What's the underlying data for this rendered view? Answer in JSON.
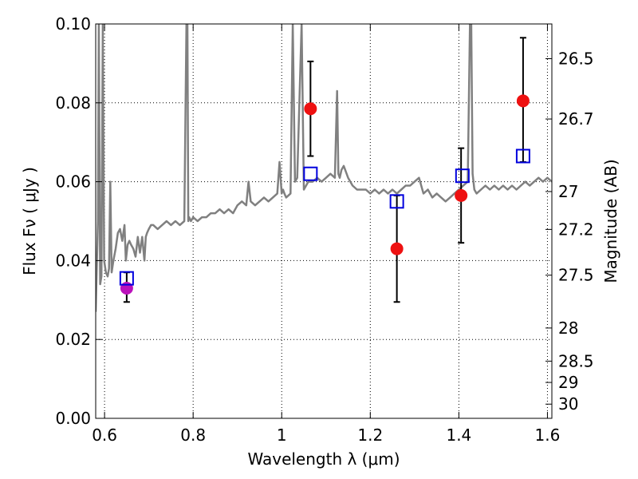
{
  "chart_data": {
    "type": "scatter",
    "xlabel": "Wavelength  λ (μm)",
    "ylabel": "Flux  Fν  ( μJy )",
    "ylabel_right": "Magnitude (AB)",
    "xlim": [
      0.58,
      1.61
    ],
    "ylim": [
      0.0,
      0.1
    ],
    "grid": true,
    "x_ticks": [
      0.6,
      0.8,
      1.0,
      1.2,
      1.4,
      1.6
    ],
    "x_tick_labels": [
      "0.6",
      "0.8",
      "1",
      "1.2",
      "1.4",
      "1.6"
    ],
    "y_ticks": [
      0.0,
      0.02,
      0.04,
      0.06,
      0.08,
      0.1
    ],
    "y_tick_labels": [
      "0.00",
      "0.02",
      "0.04",
      "0.06",
      "0.08",
      "0.10"
    ],
    "right_ticks": [
      {
        "label": "26.5",
        "flux": 0.0912
      },
      {
        "label": "26.7",
        "flux": 0.0759
      },
      {
        "label": "27",
        "flux": 0.0575
      },
      {
        "label": "27.2",
        "flux": 0.0479
      },
      {
        "label": "27.5",
        "flux": 0.0363
      },
      {
        "label": "28",
        "flux": 0.0229
      },
      {
        "label": "28.5",
        "flux": 0.0145
      },
      {
        "label": "29",
        "flux": 0.0091
      },
      {
        "label": "30",
        "flux": 0.0036
      }
    ],
    "series": [
      {
        "kind": "line",
        "color": "#808080",
        "x": [
          0.58,
          0.585,
          0.587,
          0.59,
          0.593,
          0.596,
          0.599,
          0.603,
          0.607,
          0.61,
          0.613,
          0.616,
          0.62,
          0.625,
          0.63,
          0.635,
          0.64,
          0.645,
          0.648,
          0.652,
          0.656,
          0.66,
          0.665,
          0.67,
          0.675,
          0.68,
          0.685,
          0.69,
          0.693,
          0.696,
          0.7,
          0.705,
          0.71,
          0.72,
          0.73,
          0.74,
          0.75,
          0.76,
          0.77,
          0.78,
          0.785,
          0.787,
          0.789,
          0.791,
          0.795,
          0.8,
          0.81,
          0.82,
          0.83,
          0.84,
          0.85,
          0.86,
          0.87,
          0.88,
          0.89,
          0.9,
          0.91,
          0.92,
          0.925,
          0.93,
          0.94,
          0.95,
          0.96,
          0.97,
          0.98,
          0.99,
          0.995,
          1.0,
          1.003,
          1.006,
          1.01,
          1.02,
          1.025,
          1.03,
          1.035,
          1.045,
          1.05,
          1.055,
          1.06,
          1.07,
          1.08,
          1.09,
          1.1,
          1.11,
          1.12,
          1.125,
          1.128,
          1.131,
          1.135,
          1.14,
          1.15,
          1.16,
          1.17,
          1.18,
          1.19,
          1.2,
          1.21,
          1.22,
          1.23,
          1.24,
          1.25,
          1.26,
          1.27,
          1.28,
          1.29,
          1.3,
          1.31,
          1.32,
          1.33,
          1.34,
          1.35,
          1.36,
          1.37,
          1.38,
          1.39,
          1.4,
          1.41,
          1.42,
          1.425,
          1.428,
          1.431,
          1.435,
          1.44,
          1.45,
          1.46,
          1.47,
          1.48,
          1.49,
          1.5,
          1.51,
          1.52,
          1.53,
          1.54,
          1.55,
          1.56,
          1.57,
          1.58,
          1.59,
          1.6,
          1.61
        ],
        "y": [
          0.027,
          0.05,
          0.1,
          0.034,
          0.036,
          0.1,
          0.04,
          0.037,
          0.036,
          0.038,
          0.06,
          0.037,
          0.04,
          0.043,
          0.047,
          0.048,
          0.045,
          0.049,
          0.04,
          0.044,
          0.045,
          0.044,
          0.043,
          0.041,
          0.046,
          0.042,
          0.046,
          0.04,
          0.046,
          0.047,
          0.048,
          0.049,
          0.049,
          0.048,
          0.049,
          0.05,
          0.049,
          0.05,
          0.049,
          0.05,
          0.1,
          0.1,
          0.05,
          0.051,
          0.05,
          0.051,
          0.05,
          0.051,
          0.051,
          0.052,
          0.052,
          0.053,
          0.052,
          0.053,
          0.052,
          0.054,
          0.055,
          0.054,
          0.06,
          0.055,
          0.054,
          0.055,
          0.056,
          0.055,
          0.056,
          0.057,
          0.065,
          0.057,
          0.058,
          0.057,
          0.056,
          0.057,
          0.1,
          0.06,
          0.061,
          0.1,
          0.058,
          0.059,
          0.06,
          0.06,
          0.061,
          0.06,
          0.061,
          0.062,
          0.061,
          0.083,
          0.062,
          0.061,
          0.063,
          0.064,
          0.061,
          0.059,
          0.058,
          0.058,
          0.058,
          0.057,
          0.058,
          0.057,
          0.058,
          0.057,
          0.058,
          0.057,
          0.058,
          0.059,
          0.059,
          0.06,
          0.061,
          0.057,
          0.058,
          0.056,
          0.057,
          0.056,
          0.055,
          0.056,
          0.057,
          0.058,
          0.059,
          0.06,
          0.1,
          0.1,
          0.062,
          0.058,
          0.057,
          0.058,
          0.059,
          0.058,
          0.059,
          0.058,
          0.059,
          0.058,
          0.059,
          0.058,
          0.059,
          0.06,
          0.059,
          0.06,
          0.061,
          0.06,
          0.061,
          0.06
        ]
      },
      {
        "kind": "points",
        "marker": "circle",
        "color": "#ee1111",
        "x": [
          1.065,
          1.26,
          1.405,
          1.545
        ],
        "y": [
          0.0785,
          0.043,
          0.0565,
          0.0805
        ],
        "y_err_low": [
          0.012,
          0.0135,
          0.012,
          0.0155
        ],
        "y_err_high": [
          0.012,
          0.0135,
          0.012,
          0.016
        ]
      },
      {
        "kind": "points",
        "marker": "circle",
        "color": "#bb11bb",
        "x": [
          0.65
        ],
        "y": [
          0.033
        ],
        "y_err_low": [
          0.0035
        ],
        "y_err_high": [
          0.004
        ]
      },
      {
        "kind": "points",
        "marker": "open-square",
        "color": "#0000dd",
        "x": [
          0.65,
          1.065,
          1.26,
          1.408,
          1.545
        ],
        "y": [
          0.0355,
          0.062,
          0.055,
          0.0615,
          0.0665
        ]
      }
    ]
  }
}
